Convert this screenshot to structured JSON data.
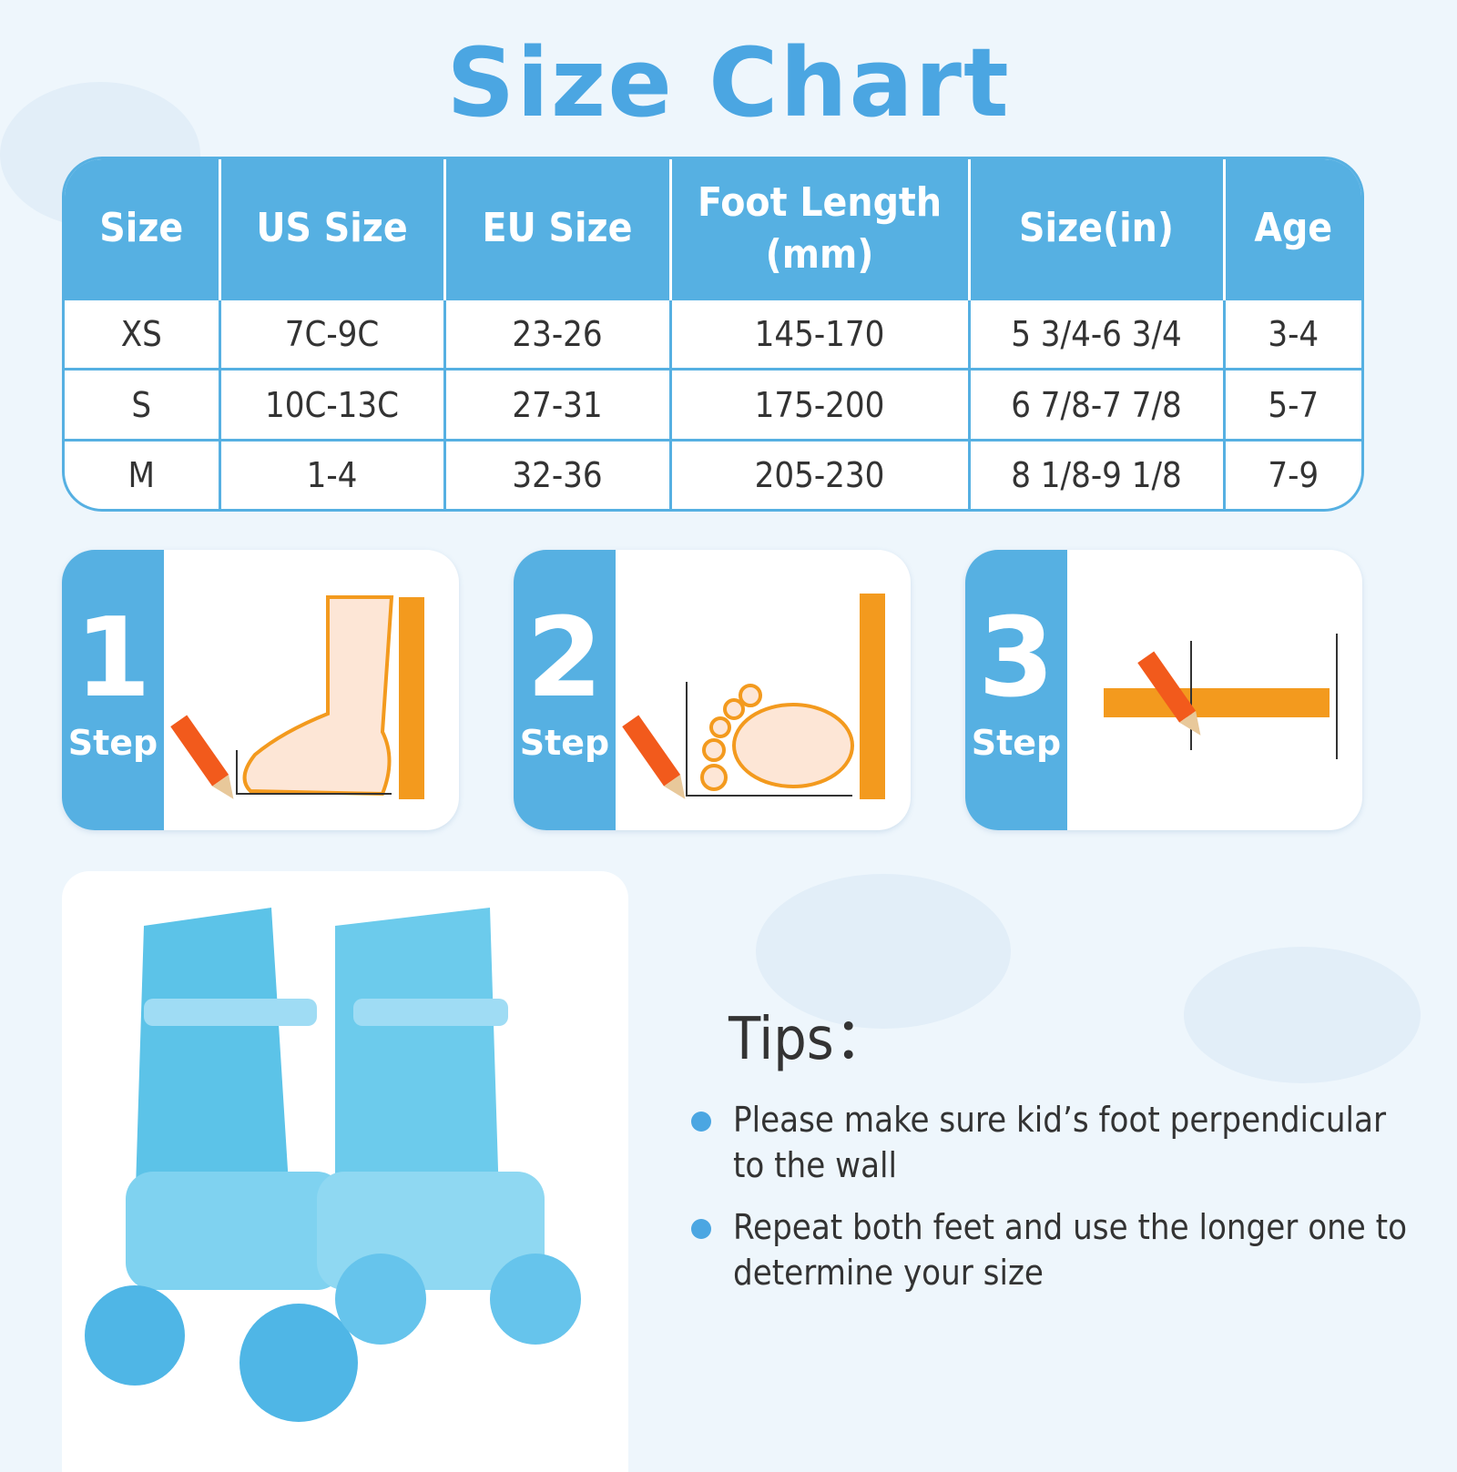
{
  "title": "Size Chart",
  "table": {
    "headers": [
      "Size",
      "US Size",
      "EU Size",
      "Foot Length (mm)",
      "Size(in)",
      "Age"
    ],
    "rows": [
      [
        "XS",
        "7C-9C",
        "23-26",
        "145-170",
        "5 3/4-6 3/4",
        "3-4"
      ],
      [
        "S",
        "10C-13C",
        "27-31",
        "175-200",
        "6 7/8-7 7/8",
        "5-7"
      ],
      [
        "M",
        "1-4",
        "32-36",
        "205-230",
        "8 1/8-9 1/8",
        "7-9"
      ]
    ]
  },
  "steps": [
    {
      "number": "1",
      "label": "Step",
      "icon": "foot-side-ruler-icon"
    },
    {
      "number": "2",
      "label": "Step",
      "icon": "footprint-ruler-icon"
    },
    {
      "number": "3",
      "label": "Step",
      "icon": "horizontal-ruler-icon"
    }
  ],
  "tips": {
    "title": "Tips：",
    "items": [
      "Please make sure kid’s foot perpendicular to the wall",
      "Repeat both feet and use the longer one to determine your size"
    ]
  },
  "colors": {
    "accent": "#56b0e2",
    "title": "#4ba6e2",
    "ruler": "#f39a1e",
    "background": "#eef6fc"
  }
}
